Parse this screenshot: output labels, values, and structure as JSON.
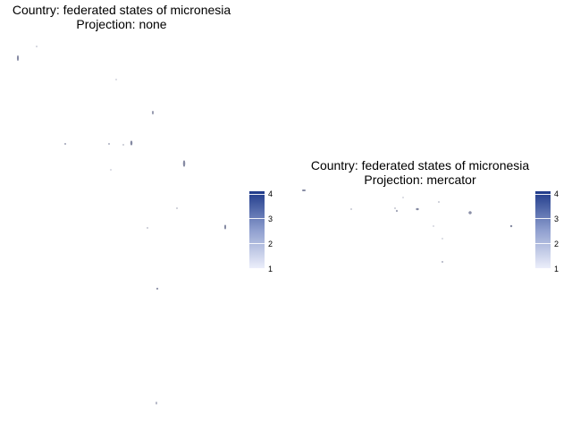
{
  "panels": [
    {
      "title_line1": "Country: federated states of micronesia",
      "title_line2": "Projection: none",
      "legend": {
        "labels": [
          "4",
          "3",
          "2",
          "1"
        ]
      }
    },
    {
      "title_line1": "Country: federated states of micronesia",
      "title_line2": "Projection: mercator",
      "legend": {
        "labels": [
          "4",
          "3",
          "2",
          "1"
        ]
      }
    }
  ],
  "colors": {
    "legend_high": "#1f3a8a",
    "legend_mid": "#8f9fcf",
    "legend_low": "#eef0fb",
    "land": "#8a8fa8"
  }
}
